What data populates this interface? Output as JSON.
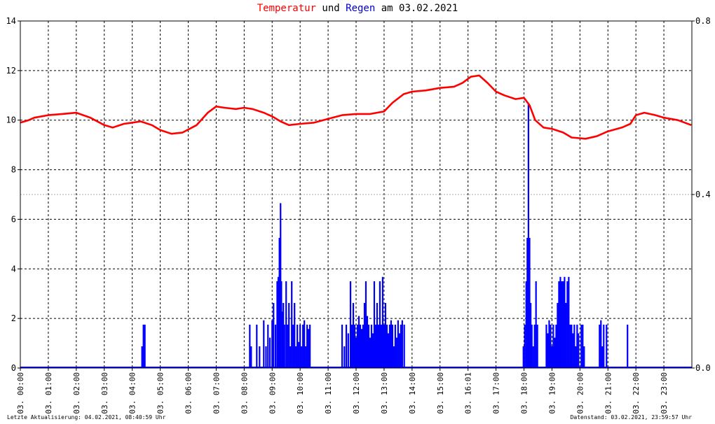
{
  "title": {
    "part1": "Temperatur",
    "part2": " und ",
    "part3": "Regen",
    "part4": " am 03.02.2021",
    "color_temp": "#ff0000",
    "color_rain": "#0000cc"
  },
  "footer": {
    "left": "Letzte Aktualisierung: 04.02.2021, 08:40:59 Uhr",
    "right": "Datenstand: 03.02.2021, 23:59:57 Uhr"
  },
  "chart_data": {
    "type": "line",
    "x_unit": "hour",
    "xlim": [
      0,
      24
    ],
    "x_tick_labels": [
      "03. 00:00",
      "03. 01:00",
      "03. 02:00",
      "03. 03:00",
      "03. 04:00",
      "03. 05:00",
      "03. 06:00",
      "03. 07:00",
      "03. 08:00",
      "03. 09:00",
      "03. 10:00",
      "03. 11:00",
      "03. 12:00",
      "03. 13:00",
      "03. 14:00",
      "03. 15:00",
      "03. 16:01",
      "03. 17:00",
      "03. 18:00",
      "03. 19:00",
      "03. 20:00",
      "03. 21:00",
      "03. 22:00",
      "03. 23:00"
    ],
    "x_tick_hours": [
      0,
      1,
      2,
      3,
      4,
      5,
      6,
      7,
      8,
      9,
      10,
      11,
      12,
      13,
      14,
      15,
      16,
      17,
      18,
      19,
      20,
      21,
      22,
      23
    ],
    "y_left": {
      "ylim": [
        0,
        14
      ],
      "ticks": [
        0,
        2,
        4,
        6,
        8,
        10,
        12,
        14
      ],
      "tick_labels": [
        "0",
        "2",
        "4",
        "6",
        "8",
        "10",
        "12",
        "14"
      ]
    },
    "y_right": {
      "ylim": [
        0,
        0.8
      ],
      "tick_labels": [
        "0.0",
        "0.4",
        "0.8"
      ],
      "tick_values": [
        0,
        0.4,
        0.8
      ]
    },
    "grid": true,
    "series": [
      {
        "axis": "left",
        "color": "#ff0000",
        "style": "line",
        "points": [
          [
            0,
            9.9
          ],
          [
            0.3,
            10.0
          ],
          [
            0.5,
            10.1
          ],
          [
            1.0,
            10.2
          ],
          [
            1.5,
            10.25
          ],
          [
            2.0,
            10.3
          ],
          [
            2.5,
            10.1
          ],
          [
            3.0,
            9.8
          ],
          [
            3.3,
            9.7
          ],
          [
            3.7,
            9.85
          ],
          [
            4.0,
            9.9
          ],
          [
            4.3,
            9.95
          ],
          [
            4.7,
            9.8
          ],
          [
            5.0,
            9.6
          ],
          [
            5.4,
            9.45
          ],
          [
            5.8,
            9.5
          ],
          [
            6.3,
            9.8
          ],
          [
            6.7,
            10.3
          ],
          [
            7.0,
            10.55
          ],
          [
            7.3,
            10.5
          ],
          [
            7.7,
            10.45
          ],
          [
            8.0,
            10.5
          ],
          [
            8.3,
            10.45
          ],
          [
            8.7,
            10.3
          ],
          [
            9.0,
            10.15
          ],
          [
            9.3,
            9.95
          ],
          [
            9.6,
            9.8
          ],
          [
            10.0,
            9.85
          ],
          [
            10.5,
            9.9
          ],
          [
            11.0,
            10.05
          ],
          [
            11.5,
            10.2
          ],
          [
            12.0,
            10.25
          ],
          [
            12.5,
            10.25
          ],
          [
            13.0,
            10.35
          ],
          [
            13.3,
            10.7
          ],
          [
            13.7,
            11.05
          ],
          [
            14.0,
            11.15
          ],
          [
            14.5,
            11.2
          ],
          [
            15.0,
            11.3
          ],
          [
            15.5,
            11.35
          ],
          [
            15.8,
            11.5
          ],
          [
            16.1,
            11.75
          ],
          [
            16.4,
            11.8
          ],
          [
            16.7,
            11.5
          ],
          [
            17.0,
            11.15
          ],
          [
            17.3,
            11.0
          ],
          [
            17.7,
            10.85
          ],
          [
            18.0,
            10.9
          ],
          [
            18.2,
            10.6
          ],
          [
            18.4,
            10.0
          ],
          [
            18.7,
            9.7
          ],
          [
            19.0,
            9.65
          ],
          [
            19.4,
            9.5
          ],
          [
            19.7,
            9.3
          ],
          [
            20.2,
            9.25
          ],
          [
            20.6,
            9.35
          ],
          [
            21.0,
            9.55
          ],
          [
            21.5,
            9.7
          ],
          [
            21.8,
            9.85
          ],
          [
            22.0,
            10.2
          ],
          [
            22.3,
            10.3
          ],
          [
            22.7,
            10.2
          ],
          [
            23.0,
            10.1
          ],
          [
            23.5,
            10.0
          ],
          [
            23.98,
            9.8
          ]
        ]
      },
      {
        "axis": "right",
        "color": "#0000ff",
        "style": "impulses",
        "bars": [
          [
            4.35,
            0.05
          ],
          [
            4.4,
            0.1
          ],
          [
            4.45,
            0.1
          ],
          [
            8.2,
            0.1
          ],
          [
            8.25,
            0.05
          ],
          [
            8.45,
            0.1
          ],
          [
            8.55,
            0.05
          ],
          [
            8.7,
            0.11
          ],
          [
            8.78,
            0.05
          ],
          [
            8.85,
            0.1
          ],
          [
            8.92,
            0.07
          ],
          [
            9.0,
            0.11
          ],
          [
            9.05,
            0.15
          ],
          [
            9.12,
            0.1
          ],
          [
            9.18,
            0.2
          ],
          [
            9.22,
            0.21
          ],
          [
            9.26,
            0.3
          ],
          [
            9.3,
            0.38
          ],
          [
            9.33,
            0.2
          ],
          [
            9.36,
            0.13
          ],
          [
            9.4,
            0.15
          ],
          [
            9.44,
            0.1
          ],
          [
            9.5,
            0.2
          ],
          [
            9.55,
            0.1
          ],
          [
            9.6,
            0.15
          ],
          [
            9.65,
            0.05
          ],
          [
            9.7,
            0.2
          ],
          [
            9.75,
            0.1
          ],
          [
            9.8,
            0.15
          ],
          [
            9.85,
            0.05
          ],
          [
            9.9,
            0.1
          ],
          [
            9.95,
            0.06
          ],
          [
            10.0,
            0.1
          ],
          [
            10.05,
            0.05
          ],
          [
            10.1,
            0.1
          ],
          [
            10.15,
            0.11
          ],
          [
            10.2,
            0.05
          ],
          [
            10.25,
            0.1
          ],
          [
            10.3,
            0.09
          ],
          [
            10.35,
            0.1
          ],
          [
            11.5,
            0.1
          ],
          [
            11.58,
            0.05
          ],
          [
            11.65,
            0.1
          ],
          [
            11.72,
            0.08
          ],
          [
            11.8,
            0.2
          ],
          [
            11.85,
            0.1
          ],
          [
            11.9,
            0.15
          ],
          [
            11.95,
            0.1
          ],
          [
            12.0,
            0.07
          ],
          [
            12.05,
            0.1
          ],
          [
            12.1,
            0.12
          ],
          [
            12.15,
            0.1
          ],
          [
            12.2,
            0.09
          ],
          [
            12.25,
            0.1
          ],
          [
            12.3,
            0.15
          ],
          [
            12.35,
            0.2
          ],
          [
            12.4,
            0.12
          ],
          [
            12.45,
            0.1
          ],
          [
            12.5,
            0.07
          ],
          [
            12.55,
            0.1
          ],
          [
            12.6,
            0.08
          ],
          [
            12.65,
            0.2
          ],
          [
            12.7,
            0.1
          ],
          [
            12.75,
            0.15
          ],
          [
            12.8,
            0.1
          ],
          [
            12.85,
            0.2
          ],
          [
            12.9,
            0.1
          ],
          [
            12.95,
            0.21
          ],
          [
            13.0,
            0.1
          ],
          [
            13.05,
            0.15
          ],
          [
            13.1,
            0.1
          ],
          [
            13.15,
            0.08
          ],
          [
            13.2,
            0.1
          ],
          [
            13.25,
            0.11
          ],
          [
            13.3,
            0.1
          ],
          [
            13.35,
            0.05
          ],
          [
            13.4,
            0.1
          ],
          [
            13.45,
            0.07
          ],
          [
            13.5,
            0.11
          ],
          [
            13.55,
            0.08
          ],
          [
            13.6,
            0.1
          ],
          [
            13.65,
            0.11
          ],
          [
            13.72,
            0.1
          ],
          [
            17.98,
            0.05
          ],
          [
            18.03,
            0.1
          ],
          [
            18.08,
            0.2
          ],
          [
            18.12,
            0.3
          ],
          [
            18.16,
            0.61
          ],
          [
            18.2,
            0.3
          ],
          [
            18.24,
            0.15
          ],
          [
            18.28,
            0.1
          ],
          [
            18.33,
            0.05
          ],
          [
            18.38,
            0.1
          ],
          [
            18.43,
            0.2
          ],
          [
            18.48,
            0.1
          ],
          [
            18.8,
            0.1
          ],
          [
            18.85,
            0.08
          ],
          [
            18.9,
            0.11
          ],
          [
            18.95,
            0.1
          ],
          [
            19.0,
            0.05
          ],
          [
            19.05,
            0.1
          ],
          [
            19.1,
            0.07
          ],
          [
            19.15,
            0.1
          ],
          [
            19.2,
            0.15
          ],
          [
            19.25,
            0.2
          ],
          [
            19.3,
            0.21
          ],
          [
            19.35,
            0.2
          ],
          [
            19.4,
            0.2
          ],
          [
            19.45,
            0.21
          ],
          [
            19.5,
            0.15
          ],
          [
            19.55,
            0.2
          ],
          [
            19.6,
            0.21
          ],
          [
            19.65,
            0.1
          ],
          [
            19.7,
            0.1
          ],
          [
            19.75,
            0.08
          ],
          [
            19.8,
            0.1
          ],
          [
            19.85,
            0.05
          ],
          [
            19.9,
            0.1
          ],
          [
            19.95,
            0.08
          ],
          [
            20.05,
            0.1
          ],
          [
            20.1,
            0.1
          ],
          [
            20.15,
            0.05
          ],
          [
            20.7,
            0.1
          ],
          [
            20.75,
            0.11
          ],
          [
            20.8,
            0.05
          ],
          [
            20.85,
            0.1
          ],
          [
            20.95,
            0.1
          ],
          [
            21.7,
            0.1
          ]
        ]
      }
    ]
  }
}
